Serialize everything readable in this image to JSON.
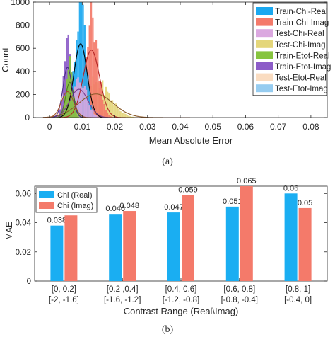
{
  "panels": {
    "top_caption": "(a)",
    "bottom_caption": "(b)"
  },
  "chart_data": [
    {
      "type": "histogram",
      "xlabel": "Mean Absolute Error",
      "ylabel": "Count",
      "xlim": [
        -0.005,
        0.085
      ],
      "ylim": [
        0,
        1000
      ],
      "xticks": [
        0,
        0.01,
        0.02,
        0.03,
        0.04,
        0.05,
        0.06,
        0.07,
        0.08
      ],
      "xtick_labels": [
        "0",
        "0.01",
        "0.02",
        "0.03",
        "0.04",
        "0.05",
        "0.06",
        "0.07",
        "0.08"
      ],
      "yticks": [
        0,
        200,
        400,
        600,
        800,
        1000
      ],
      "ytick_labels": [
        "0",
        "200",
        "400",
        "600",
        "800",
        "1000"
      ],
      "legend_position": "top-right",
      "bin_width": 0.0005,
      "series": [
        {
          "name": "Train-Chi-Real",
          "color": "#1aa8f0",
          "mean": 0.0095,
          "sd": 0.0016,
          "peak": 940
        },
        {
          "name": "Train-Chi-Imag",
          "color": "#f47a6a",
          "mean": 0.0128,
          "sd": 0.002,
          "peak": 860
        },
        {
          "name": "Test-Chi-Real",
          "color": "#dba8e0",
          "mean": 0.009,
          "sd": 0.0022,
          "peak": 360
        },
        {
          "name": "Test-Chi-Imag",
          "color": "#e4d67a",
          "mean": 0.0142,
          "sd": 0.0042,
          "peak": 300
        },
        {
          "name": "Train-Etot-Real",
          "color": "#86c43e",
          "mean": 0.0062,
          "sd": 0.001,
          "peak": 450
        },
        {
          "name": "Train-Etot-Imag",
          "color": "#8c5cc8",
          "mean": 0.0055,
          "sd": 0.0011,
          "peak": 640
        },
        {
          "name": "Test-Etot-Real",
          "color": "#fadcc0",
          "mean": 0.0055,
          "sd": 0.0015,
          "peak": 330
        },
        {
          "name": "Test-Etot-Imag",
          "color": "#96ccf0",
          "mean": 0.005,
          "sd": 0.001,
          "peak": 140
        }
      ]
    },
    {
      "type": "bar",
      "xlabel": "Contrast Range (Real\\Imag)",
      "ylabel": "MAE",
      "ylim": [
        0,
        0.065
      ],
      "yticks": [
        0,
        0.02,
        0.04,
        0.06
      ],
      "ytick_labels": [
        "0",
        "0.02",
        "0.04",
        "0.06"
      ],
      "legend_position": "top-left",
      "categories": [
        [
          "[0, 0.2]",
          "[-2, -1.6]"
        ],
        [
          "[0.2 ,0.4]",
          "[-1.6, -1.2]"
        ],
        [
          "[0.4, 0.6]",
          "[-1.2, -0.8]"
        ],
        [
          "[0.6, 0.8]",
          "[-0.8, -0.4]"
        ],
        [
          "[0.8, 1]",
          "[-0.4, 0]"
        ]
      ],
      "series": [
        {
          "name": "Chi (Real)",
          "color": "#1aaef2",
          "values": [
            0.038,
            0.046,
            0.047,
            0.051,
            0.06
          ],
          "labels": [
            "0.038",
            "0.046",
            "0.047",
            "0.051",
            "0.06"
          ]
        },
        {
          "name": "Chi (Imag)",
          "color": "#f47a6a",
          "values": [
            0.045,
            0.048,
            0.059,
            0.065,
            0.05
          ],
          "labels": [
            "0.045",
            "0.048",
            "0.059",
            "0.065",
            "0.05"
          ]
        }
      ]
    }
  ]
}
